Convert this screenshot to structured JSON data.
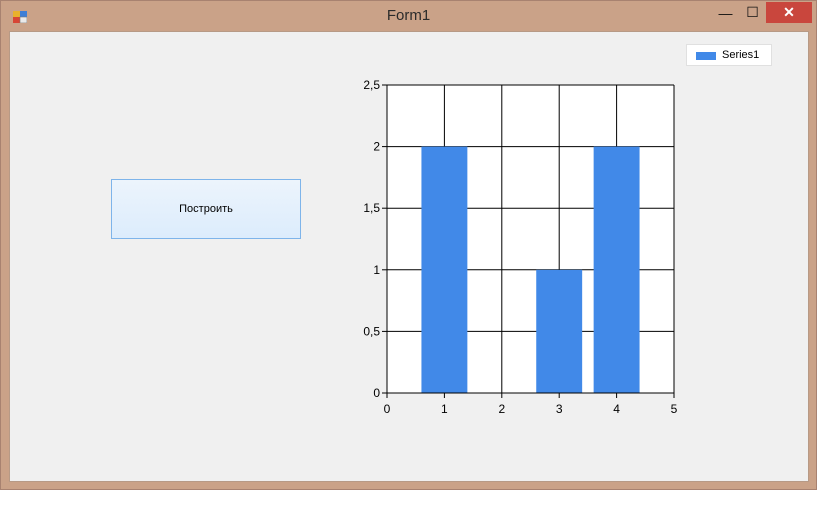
{
  "window": {
    "title": "Form1",
    "controls": {
      "minimize": "—",
      "maximize": "☐",
      "close": "✕"
    },
    "icon": "app-form-icon"
  },
  "button": {
    "label": "Построить"
  },
  "chart_data": {
    "type": "bar",
    "series": [
      {
        "name": "Series1",
        "color": "#4189e8",
        "x": [
          1,
          3,
          4
        ],
        "values": [
          2,
          1,
          2
        ]
      }
    ],
    "xlim": [
      0,
      5
    ],
    "ylim": [
      0,
      2.5
    ],
    "x_ticks": [
      "0",
      "1",
      "2",
      "3",
      "4",
      "5"
    ],
    "y_ticks": [
      "0",
      "0,5",
      "1",
      "1,5",
      "2",
      "2,5"
    ],
    "grid": true,
    "legend_position": "top-right"
  }
}
